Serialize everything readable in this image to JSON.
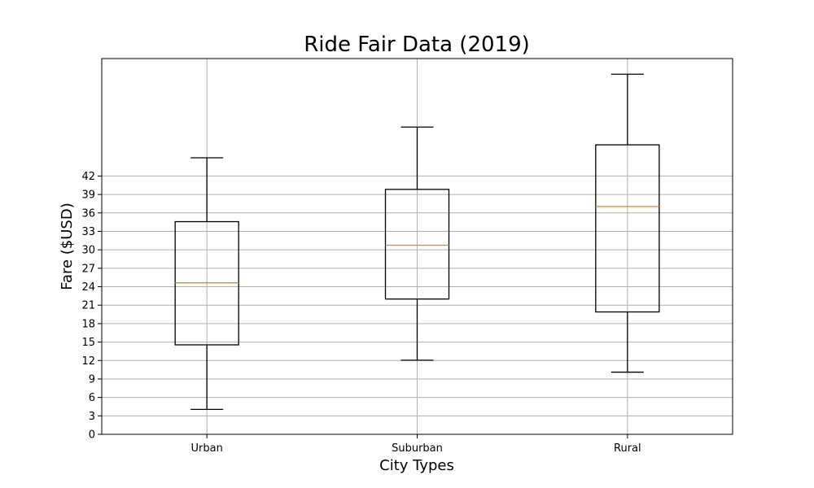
{
  "chart_data": {
    "type": "box",
    "title": "Ride Fair Data (2019)",
    "xlabel": "City Types",
    "ylabel": "Fare ($USD)",
    "categories": [
      "Urban",
      "Suburban",
      "Rural"
    ],
    "boxes": [
      {
        "name": "Urban",
        "whisker_low": 4.05,
        "q1": 14.55,
        "median": 24.64,
        "q3": 34.58,
        "whisker_high": 44.97
      },
      {
        "name": "Suburban",
        "whisker_low": 12.05,
        "q1": 22.0,
        "median": 30.75,
        "q3": 39.83,
        "whisker_high": 49.96
      },
      {
        "name": "Rural",
        "whisker_low": 10.11,
        "q1": 19.9,
        "median": 37.05,
        "q3": 47.07,
        "whisker_high": 58.55
      }
    ],
    "yticks": [
      0,
      3,
      6,
      9,
      12,
      15,
      18,
      21,
      24,
      27,
      30,
      33,
      36,
      39,
      42
    ],
    "ylim": [
      0,
      61.1
    ],
    "grid": true,
    "colors": {
      "box": "#000000",
      "median": "#ff7f0e",
      "grid": "#b0b0b0"
    }
  }
}
